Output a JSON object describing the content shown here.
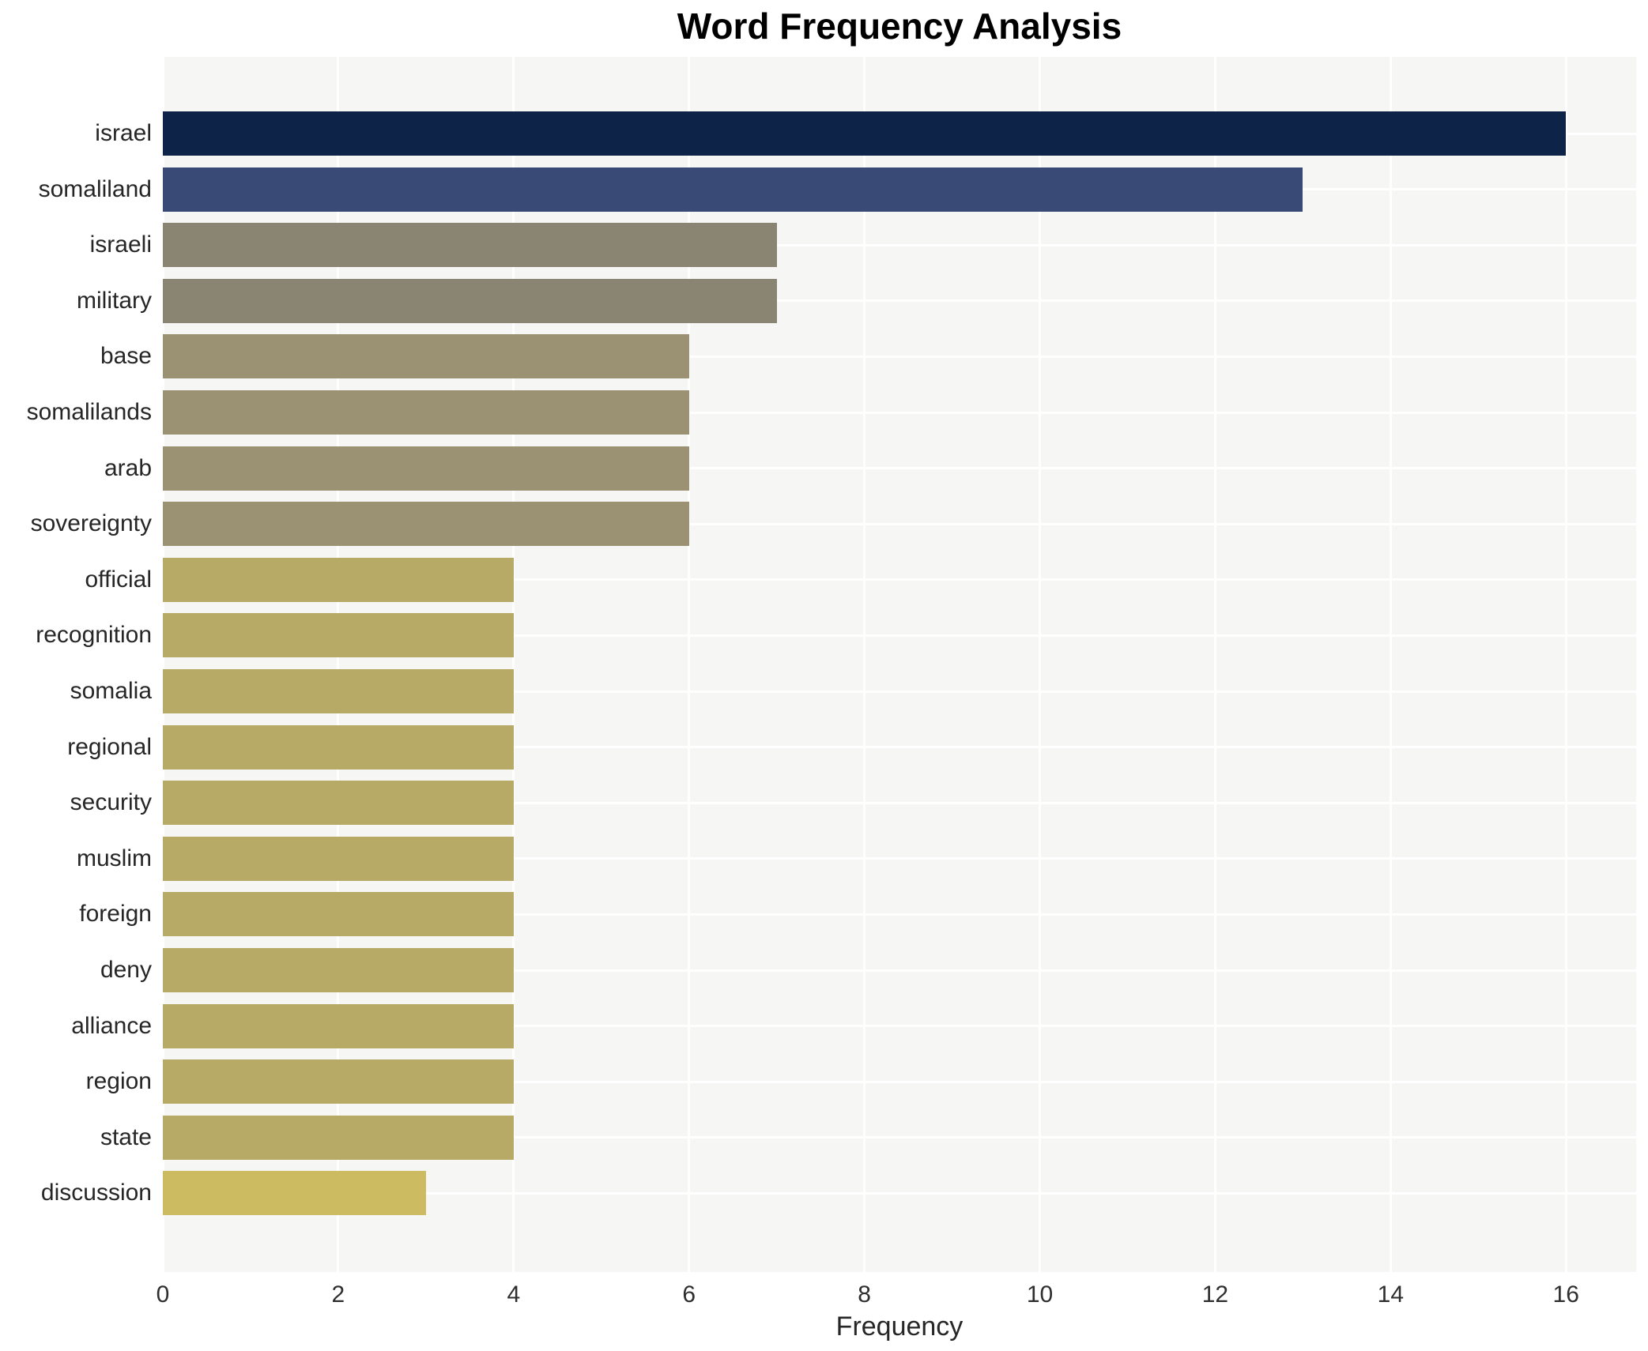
{
  "chart_data": {
    "type": "bar",
    "orientation": "horizontal",
    "title": "Word Frequency Analysis",
    "xlabel": "Frequency",
    "ylabel": "",
    "categories": [
      "israel",
      "somaliland",
      "israeli",
      "military",
      "base",
      "somalilands",
      "arab",
      "sovereignty",
      "official",
      "recognition",
      "somalia",
      "regional",
      "security",
      "muslim",
      "foreign",
      "deny",
      "alliance",
      "region",
      "state",
      "discussion"
    ],
    "values": [
      16,
      13,
      7,
      7,
      6,
      6,
      6,
      6,
      4,
      4,
      4,
      4,
      4,
      4,
      4,
      4,
      4,
      4,
      4,
      3
    ],
    "bar_colors": [
      "#0d2347",
      "#3a4a76",
      "#898572",
      "#898572",
      "#9b9273",
      "#9b9273",
      "#9b9273",
      "#9b9273",
      "#b7aa66",
      "#b7aa66",
      "#b7aa66",
      "#b7aa66",
      "#b7aa66",
      "#b7aa66",
      "#b7aa66",
      "#b7aa66",
      "#b7aa66",
      "#b7aa66",
      "#b7aa66",
      "#ccbb60"
    ],
    "xticks": [
      0,
      2,
      4,
      6,
      8,
      10,
      12,
      14,
      16
    ],
    "xlim": [
      0,
      16.8
    ],
    "grid": "white gridlines on light gray plot background",
    "plot_background": "#f6f6f4",
    "gridline_color": "#ffffff",
    "legend": "none"
  }
}
